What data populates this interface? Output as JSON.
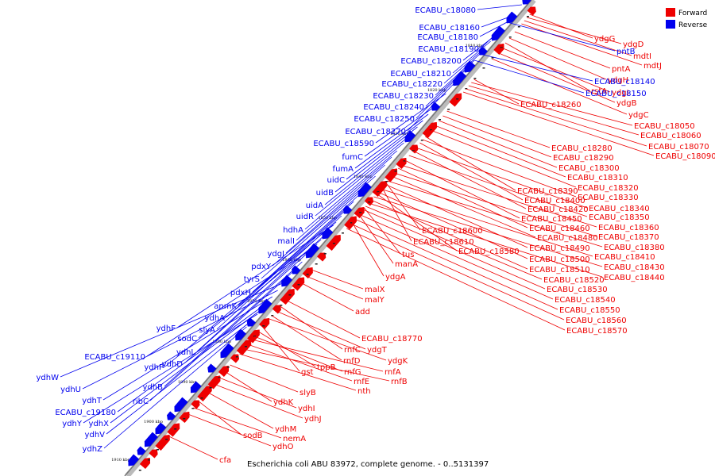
{
  "caption": "Escherichia coli ABU 83972, complete genome. - 0..5131397",
  "legend": [
    {
      "label": "Forward",
      "color": "#ee0000"
    },
    {
      "label": "Reverse",
      "color": "#0000ee"
    }
  ],
  "ticks": [
    "1810 kbp",
    "1820 kbp",
    "1830 kbp",
    "1840 kbp",
    "1850 kbp",
    "1860 kbp",
    "1870 kbp",
    "1880 kbp",
    "1890 kbp",
    "1900 kbp",
    "1910 kbp"
  ],
  "forward_labels": [
    "ydgG",
    "ydgD",
    "mdtI",
    "mdtJ",
    "pntA",
    "ydgH",
    "rstA",
    "ydgI",
    "ydgB",
    "ydgC",
    "ECABU_c18260",
    "ECABU_c18050",
    "ECABU_c18060",
    "ECABU_c18070",
    "ECABU_c18090",
    "ECABU_c18280",
    "ECABU_c18290",
    "ECABU_c18300",
    "ECABU_c18310",
    "ECABU_c18320",
    "ECABU_c18390",
    "ECABU_c18330",
    "ECABU_c18400",
    "ECABU_c18340",
    "ECABU_c18420",
    "ECABU_c18350",
    "ECABU_c18450",
    "ECABU_c18360",
    "ECABU_c18460",
    "ECABU_c18370",
    "ECABU_c18480",
    "ECABU_c18380",
    "ECABU_c18490",
    "ECABU_c18410",
    "ECABU_c18500",
    "ECABU_c18430",
    "ECABU_c18510",
    "ECABU_c18440",
    "ECABU_c18520",
    "ECABU_c18530",
    "ECABU_c18540",
    "ECABU_c18550",
    "ECABU_c18560",
    "ECABU_c18570",
    "ECABU_c18600",
    "ECABU_c18610",
    "ECABU_c18580",
    "tus",
    "manA",
    "ydgA",
    "malX",
    "malY",
    "add",
    "ECABU_c18770",
    "rnfC",
    "ydgT",
    "rnfD",
    "ydgK",
    "gst",
    "tppB",
    "rnfG",
    "rnfA",
    "rnfE",
    "rnfB",
    "nth",
    "slyB",
    "ydhK",
    "ydhI",
    "ydhJ",
    "ydhM",
    "sodB",
    "nemA",
    "ydhO",
    "cfa"
  ],
  "reverse_labels": [
    "ECABU_c18080",
    "ECABU_c18160",
    "ECABU_c18180",
    "ECABU_c18190",
    "ECABU_c18200",
    "ECABU_c18210",
    "ECABU_c18220",
    "ECABU_c18230",
    "ECABU_c18240",
    "ECABU_c18250",
    "ECABU_c18270",
    "ECABU_c18590",
    "fumC",
    "fumA",
    "uidC",
    "uidB",
    "uidA",
    "uidR",
    "hdhA",
    "malI",
    "ydgJ",
    "pdxY",
    "tyrS",
    "pdxH",
    "anmK",
    "ydhA",
    "slyA",
    "sodC",
    "ydhF",
    "ydhL",
    "ydhP",
    "ydhD",
    "ECABU_c19110",
    "ydhB",
    "ribC",
    "ydhW",
    "ydhU",
    "ydhT",
    "ECABU_c19180",
    "ydhX",
    "ydhY",
    "ydhV",
    "ydhZ",
    "pntB",
    "ECABU_c18140",
    "ECABU_c18150"
  ]
}
